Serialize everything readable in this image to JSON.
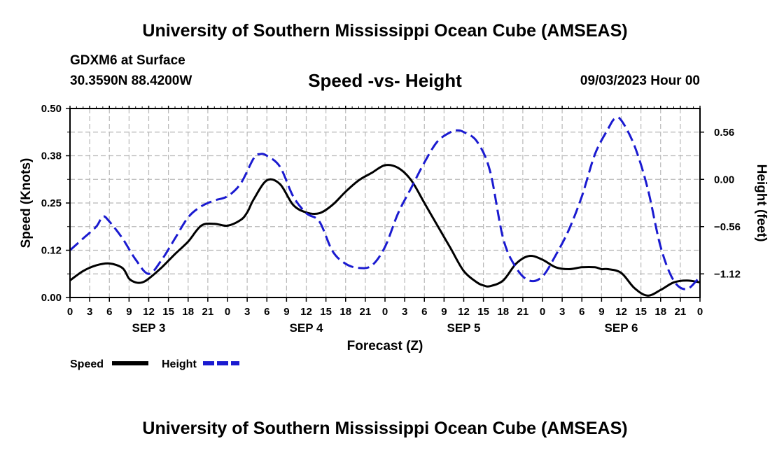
{
  "header": {
    "title": "University of Southern Mississippi Ocean Cube (AMSEAS)",
    "station": "GDXM6 at Surface",
    "coordinates": "30.3590N  88.4200W",
    "subtitle": "Speed -vs- Height",
    "datetime": "09/03/2023 Hour 00"
  },
  "footer": {
    "title": "University of Southern Mississippi Ocean Cube (AMSEAS)"
  },
  "chart_data": {
    "type": "line",
    "title": "Speed -vs- Height",
    "xlabel": "Forecast (Z)",
    "ylabel_left": "Speed (Knots)",
    "ylabel_right": "Height (feet)",
    "x_range_hours": [
      0,
      96
    ],
    "y_left_range": [
      0,
      0.5
    ],
    "y_right_range": [
      -1.4,
      0.84
    ],
    "y_left_ticks": [
      "0.00",
      "0.12",
      "0.25",
      "0.38",
      "0.50"
    ],
    "y_left_tick_values": [
      0,
      0.125,
      0.25,
      0.375,
      0.5
    ],
    "y_right_ticks": [
      "0.56",
      "0.00",
      "−0.56",
      "−1.12"
    ],
    "y_right_tick_values": [
      0.56,
      0.0,
      -0.56,
      -1.12
    ],
    "x_tick_labels": [
      "0",
      "3",
      "6",
      "9",
      "12",
      "15",
      "18",
      "21",
      "0",
      "3",
      "6",
      "9",
      "12",
      "15",
      "18",
      "21",
      "0",
      "3",
      "6",
      "9",
      "12",
      "15",
      "18",
      "21",
      "0",
      "3",
      "6",
      "9",
      "12",
      "15",
      "18",
      "21",
      "0"
    ],
    "day_labels": [
      {
        "label": "SEP 3",
        "hour": 12
      },
      {
        "label": "SEP 4",
        "hour": 36
      },
      {
        "label": "SEP 5",
        "hour": 60
      },
      {
        "label": "SEP 6",
        "hour": 84
      }
    ],
    "grid": true,
    "legend": [
      {
        "name": "Speed",
        "color": "#000000",
        "dash": "solid"
      },
      {
        "name": "Height",
        "color": "#1a1ad0",
        "dash": "dashed"
      }
    ],
    "series": [
      {
        "name": "Speed",
        "axis": "left",
        "color": "#000000",
        "x": [
          0,
          2,
          4,
          6,
          8,
          9,
          10,
          11,
          12,
          14,
          16,
          18,
          20,
          22,
          24,
          26,
          27,
          28,
          30,
          32,
          34,
          36,
          38,
          40,
          42,
          44,
          46,
          48,
          50,
          52,
          54,
          56,
          58,
          60,
          62,
          63,
          64,
          66,
          68,
          70,
          72,
          74,
          76,
          78,
          80,
          81,
          82,
          84,
          86,
          88,
          90,
          92,
          94,
          96
        ],
        "y": [
          0.045,
          0.07,
          0.085,
          0.09,
          0.078,
          0.05,
          0.04,
          0.04,
          0.05,
          0.08,
          0.115,
          0.148,
          0.19,
          0.195,
          0.19,
          0.205,
          0.225,
          0.26,
          0.31,
          0.3,
          0.245,
          0.225,
          0.223,
          0.245,
          0.28,
          0.31,
          0.33,
          0.35,
          0.343,
          0.31,
          0.25,
          0.19,
          0.13,
          0.07,
          0.04,
          0.032,
          0.03,
          0.045,
          0.09,
          0.11,
          0.1,
          0.08,
          0.075,
          0.08,
          0.08,
          0.075,
          0.075,
          0.065,
          0.025,
          0.005,
          0.02,
          0.04,
          0.045,
          0.04
        ]
      },
      {
        "name": "Height",
        "axis": "right",
        "color": "#1a1ad0",
        "x": [
          0,
          2,
          4,
          5,
          6,
          8,
          10,
          12,
          14,
          16,
          18,
          20,
          22,
          24,
          26,
          28,
          29,
          30,
          32,
          34,
          36,
          38,
          40,
          42,
          44,
          46,
          48,
          50,
          52,
          54,
          56,
          58,
          59,
          60,
          62,
          64,
          66,
          68,
          70,
          72,
          74,
          76,
          78,
          80,
          82,
          83,
          84,
          86,
          88,
          90,
          92,
          94,
          96
        ],
        "y": [
          -0.84,
          -0.7,
          -0.56,
          -0.44,
          -0.5,
          -0.7,
          -0.95,
          -1.12,
          -0.95,
          -0.7,
          -0.45,
          -0.32,
          -0.25,
          -0.2,
          -0.05,
          0.25,
          0.3,
          0.28,
          0.15,
          -0.2,
          -0.4,
          -0.5,
          -0.85,
          -1.0,
          -1.05,
          -1.02,
          -0.8,
          -0.4,
          -0.1,
          0.2,
          0.45,
          0.56,
          0.58,
          0.56,
          0.45,
          0.1,
          -0.7,
          -1.05,
          -1.2,
          -1.15,
          -0.9,
          -0.6,
          -0.2,
          0.3,
          0.6,
          0.72,
          0.7,
          0.4,
          -0.1,
          -0.8,
          -1.2,
          -1.3,
          -1.15
        ]
      }
    ]
  }
}
